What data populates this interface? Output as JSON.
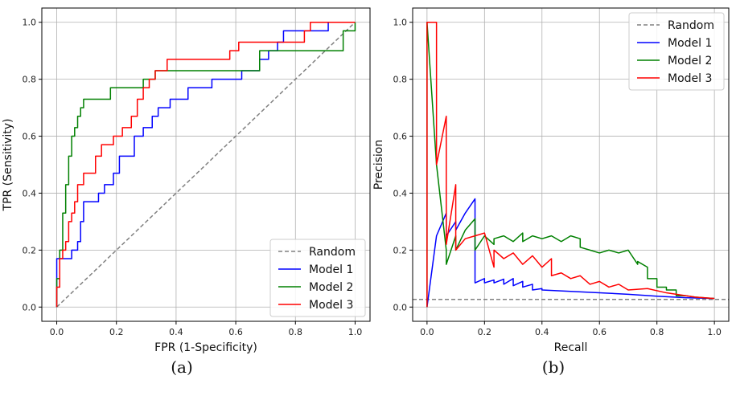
{
  "chart_data": [
    {
      "type": "line",
      "xlabel": "FPR (1-Specificity)",
      "ylabel": "TPR (Sensitivity)",
      "xlim": [
        0.0,
        1.0
      ],
      "ylim": [
        0.0,
        1.0
      ],
      "xticks": [
        "0.0",
        "0.2",
        "0.4",
        "0.6",
        "0.8",
        "1.0"
      ],
      "yticks": [
        "0.0",
        "0.2",
        "0.4",
        "0.6",
        "0.8",
        "1.0"
      ],
      "grid": true,
      "legend_position": "lower-right",
      "caption": "(a)",
      "series": [
        {
          "name": "Random",
          "color": "#808080",
          "dashed": true,
          "x": [
            0.0,
            1.0
          ],
          "y": [
            0.0,
            1.0
          ]
        },
        {
          "name": "Model 1",
          "color": "#0000ff",
          "dashed": false,
          "x": [
            0.0,
            0.0,
            0.01,
            0.01,
            0.05,
            0.05,
            0.07,
            0.07,
            0.08,
            0.08,
            0.09,
            0.09,
            0.14,
            0.14,
            0.16,
            0.16,
            0.19,
            0.19,
            0.21,
            0.21,
            0.26,
            0.26,
            0.29,
            0.29,
            0.32,
            0.32,
            0.34,
            0.34,
            0.38,
            0.38,
            0.44,
            0.44,
            0.52,
            0.52,
            0.62,
            0.62,
            0.68,
            0.68,
            0.71,
            0.71,
            0.74,
            0.74,
            0.76,
            0.76,
            0.83,
            0.83,
            0.91,
            0.91,
            1.0
          ],
          "y": [
            0.0,
            0.17,
            0.17,
            0.17,
            0.17,
            0.2,
            0.2,
            0.23,
            0.23,
            0.3,
            0.3,
            0.37,
            0.37,
            0.4,
            0.4,
            0.43,
            0.43,
            0.47,
            0.47,
            0.53,
            0.53,
            0.6,
            0.6,
            0.63,
            0.63,
            0.67,
            0.67,
            0.7,
            0.7,
            0.73,
            0.73,
            0.77,
            0.77,
            0.8,
            0.8,
            0.83,
            0.83,
            0.87,
            0.87,
            0.9,
            0.9,
            0.93,
            0.93,
            0.97,
            0.97,
            0.97,
            0.97,
            1.0,
            1.0
          ]
        },
        {
          "name": "Model 2",
          "color": "#008000",
          "dashed": false,
          "x": [
            0.0,
            0.0,
            0.01,
            0.01,
            0.02,
            0.02,
            0.03,
            0.03,
            0.04,
            0.04,
            0.05,
            0.05,
            0.06,
            0.06,
            0.07,
            0.07,
            0.08,
            0.08,
            0.09,
            0.09,
            0.18,
            0.18,
            0.29,
            0.29,
            0.33,
            0.33,
            0.4,
            0.4,
            0.68,
            0.68,
            0.82,
            0.82,
            0.96,
            0.96,
            1.0,
            1.0
          ],
          "y": [
            0.0,
            0.1,
            0.1,
            0.2,
            0.2,
            0.33,
            0.33,
            0.43,
            0.43,
            0.53,
            0.53,
            0.6,
            0.6,
            0.63,
            0.63,
            0.67,
            0.67,
            0.7,
            0.7,
            0.73,
            0.73,
            0.77,
            0.77,
            0.8,
            0.8,
            0.83,
            0.83,
            0.83,
            0.83,
            0.9,
            0.9,
            0.9,
            0.9,
            0.97,
            0.97,
            1.0
          ]
        },
        {
          "name": "Model 3",
          "color": "#ff0000",
          "dashed": false,
          "x": [
            0.0,
            0.0,
            0.01,
            0.01,
            0.02,
            0.02,
            0.03,
            0.03,
            0.04,
            0.04,
            0.05,
            0.05,
            0.06,
            0.06,
            0.07,
            0.07,
            0.09,
            0.09,
            0.13,
            0.13,
            0.15,
            0.15,
            0.19,
            0.19,
            0.22,
            0.22,
            0.25,
            0.25,
            0.27,
            0.27,
            0.29,
            0.29,
            0.31,
            0.31,
            0.33,
            0.33,
            0.37,
            0.37,
            0.58,
            0.58,
            0.61,
            0.61,
            0.83,
            0.83,
            0.85,
            0.85,
            1.0
          ],
          "y": [
            0.0,
            0.07,
            0.07,
            0.17,
            0.17,
            0.2,
            0.2,
            0.23,
            0.23,
            0.3,
            0.3,
            0.33,
            0.33,
            0.37,
            0.37,
            0.43,
            0.43,
            0.47,
            0.47,
            0.53,
            0.53,
            0.57,
            0.57,
            0.6,
            0.6,
            0.63,
            0.63,
            0.67,
            0.67,
            0.73,
            0.73,
            0.77,
            0.77,
            0.8,
            0.8,
            0.83,
            0.83,
            0.87,
            0.87,
            0.9,
            0.9,
            0.93,
            0.93,
            0.97,
            0.97,
            1.0,
            1.0
          ]
        }
      ]
    },
    {
      "type": "line",
      "xlabel": "Recall",
      "ylabel": "Precision",
      "xlim": [
        0.0,
        1.0
      ],
      "ylim": [
        0.0,
        1.0
      ],
      "xticks": [
        "0.0",
        "0.2",
        "0.4",
        "0.6",
        "0.8",
        "1.0"
      ],
      "yticks": [
        "0.0",
        "0.2",
        "0.4",
        "0.6",
        "0.8",
        "1.0"
      ],
      "grid": true,
      "legend_position": "upper-right",
      "caption": "(b)",
      "series": [
        {
          "name": "Random",
          "color": "#808080",
          "dashed": true,
          "x": [
            -0.05,
            1.05
          ],
          "y": [
            0.027,
            0.027
          ]
        },
        {
          "name": "Model 1",
          "color": "#0000ff",
          "dashed": false,
          "x": [
            0.0,
            0.033,
            0.067,
            0.067,
            0.1,
            0.1,
            0.133,
            0.167,
            0.167,
            0.2,
            0.2,
            0.233,
            0.233,
            0.267,
            0.267,
            0.3,
            0.3,
            0.333,
            0.333,
            0.367,
            0.367,
            0.4,
            0.4,
            0.5,
            0.6,
            0.7,
            0.8,
            0.9,
            1.0
          ],
          "y": [
            0.0,
            0.25,
            0.33,
            0.25,
            0.3,
            0.27,
            0.33,
            0.38,
            0.085,
            0.1,
            0.085,
            0.095,
            0.085,
            0.098,
            0.08,
            0.1,
            0.075,
            0.09,
            0.07,
            0.08,
            0.06,
            0.065,
            0.06,
            0.055,
            0.05,
            0.045,
            0.038,
            0.033,
            0.03
          ]
        },
        {
          "name": "Model 2",
          "color": "#008000",
          "dashed": false,
          "x": [
            0.0,
            0.0,
            0.033,
            0.067,
            0.067,
            0.1,
            0.1,
            0.133,
            0.167,
            0.167,
            0.2,
            0.233,
            0.233,
            0.267,
            0.3,
            0.333,
            0.333,
            0.367,
            0.4,
            0.433,
            0.467,
            0.5,
            0.533,
            0.533,
            0.567,
            0.6,
            0.633,
            0.667,
            0.7,
            0.733,
            0.733,
            0.767,
            0.767,
            0.8,
            0.8,
            0.833,
            0.833,
            0.867,
            0.867,
            0.9,
            0.933,
            1.0
          ],
          "y": [
            0.0,
            1.0,
            0.5,
            0.2,
            0.15,
            0.25,
            0.2,
            0.27,
            0.31,
            0.2,
            0.25,
            0.22,
            0.24,
            0.25,
            0.23,
            0.26,
            0.23,
            0.25,
            0.24,
            0.25,
            0.23,
            0.25,
            0.24,
            0.21,
            0.2,
            0.19,
            0.2,
            0.19,
            0.2,
            0.15,
            0.16,
            0.14,
            0.1,
            0.1,
            0.07,
            0.07,
            0.06,
            0.06,
            0.04,
            0.04,
            0.035,
            0.03
          ]
        },
        {
          "name": "Model 3",
          "color": "#ff0000",
          "dashed": false,
          "x": [
            0.0,
            0.0,
            0.033,
            0.033,
            0.067,
            0.067,
            0.1,
            0.1,
            0.133,
            0.167,
            0.2,
            0.233,
            0.233,
            0.267,
            0.3,
            0.333,
            0.367,
            0.4,
            0.433,
            0.433,
            0.467,
            0.5,
            0.533,
            0.567,
            0.6,
            0.633,
            0.667,
            0.7,
            0.767,
            0.833,
            0.9,
            0.933,
            1.0
          ],
          "y": [
            0.0,
            1.0,
            1.0,
            0.5,
            0.67,
            0.22,
            0.43,
            0.2,
            0.24,
            0.25,
            0.26,
            0.14,
            0.2,
            0.17,
            0.19,
            0.15,
            0.18,
            0.14,
            0.17,
            0.11,
            0.12,
            0.1,
            0.11,
            0.08,
            0.09,
            0.07,
            0.08,
            0.06,
            0.065,
            0.05,
            0.04,
            0.035,
            0.03
          ]
        }
      ]
    }
  ]
}
